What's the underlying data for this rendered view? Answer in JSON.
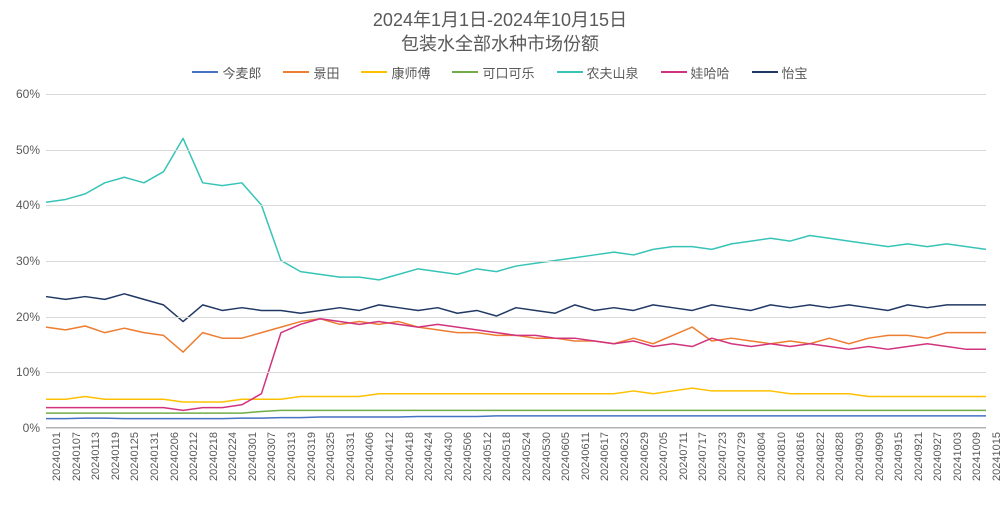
{
  "chart": {
    "type": "line",
    "title_line1": "2024年1月1日-2024年10月15日",
    "title_line2": "包装水全部水种市场份额",
    "title_fontsize": 18,
    "title_color": "#595959",
    "background_color": "#ffffff",
    "grid_color": "#d9d9d9",
    "axis_line_color": "#b3b3b3",
    "axis_label_color": "#595959",
    "axis_label_fontsize": 12,
    "x_label_fontsize": 11,
    "x_label_rotation_deg": -90,
    "line_width": 1.5,
    "y": {
      "min": 0,
      "max": 60,
      "tick_step": 10,
      "format_suffix": "%",
      "ticks": [
        0,
        10,
        20,
        30,
        40,
        50,
        60
      ]
    },
    "x_categories": [
      "20240101",
      "20240107",
      "20240113",
      "20240119",
      "20240125",
      "20240131",
      "20240206",
      "20240212",
      "20240218",
      "20240224",
      "20240301",
      "20240307",
      "20240313",
      "20240319",
      "20240325",
      "20240331",
      "20240406",
      "20240412",
      "20240418",
      "20240424",
      "20240430",
      "20240506",
      "20240512",
      "20240518",
      "20240524",
      "20240530",
      "20240605",
      "20240611",
      "20240617",
      "20240623",
      "20240629",
      "20240705",
      "20240711",
      "20240717",
      "20240723",
      "20240729",
      "20240804",
      "20240810",
      "20240816",
      "20240822",
      "20240828",
      "20240903",
      "20240909",
      "20240915",
      "20240921",
      "20240927",
      "20241003",
      "20241009",
      "20241015"
    ],
    "series": [
      {
        "name": "今麦郎",
        "color": "#4472c4",
        "data": [
          1.5,
          1.5,
          1.6,
          1.6,
          1.5,
          1.5,
          1.5,
          1.5,
          1.5,
          1.5,
          1.6,
          1.6,
          1.7,
          1.7,
          1.8,
          1.8,
          1.8,
          1.8,
          1.8,
          1.9,
          1.9,
          1.9,
          1.9,
          2.0,
          2.0,
          2.0,
          2.0,
          2.0,
          2.0,
          2.0,
          2.0,
          2.0,
          2.0,
          2.0,
          2.0,
          2.0,
          2.0,
          2.0,
          2.0,
          2.0,
          2.0,
          2.0,
          2.0,
          2.0,
          2.0,
          2.0,
          2.0,
          2.0,
          2.0
        ]
      },
      {
        "name": "景田",
        "color": "#ed7d31",
        "data": [
          18.0,
          17.5,
          18.2,
          17.0,
          17.8,
          17.0,
          16.5,
          13.5,
          17.0,
          16.0,
          16.0,
          17.0,
          18.0,
          19.0,
          19.5,
          18.5,
          19.0,
          18.5,
          19.0,
          18.0,
          17.5,
          17.0,
          17.0,
          16.5,
          16.5,
          16.0,
          16.0,
          15.5,
          15.5,
          15.0,
          16.0,
          15.0,
          16.5,
          18.0,
          15.5,
          16.0,
          15.5,
          15.0,
          15.5,
          15.0,
          16.0,
          15.0,
          16.0,
          16.5,
          16.5,
          16.0,
          17.0,
          17.0,
          17.0
        ]
      },
      {
        "name": "康师傅",
        "color": "#ffc000",
        "data": [
          5.0,
          5.0,
          5.5,
          5.0,
          5.0,
          5.0,
          5.0,
          4.5,
          4.5,
          4.5,
          5.0,
          5.0,
          5.0,
          5.5,
          5.5,
          5.5,
          5.5,
          6.0,
          6.0,
          6.0,
          6.0,
          6.0,
          6.0,
          6.0,
          6.0,
          6.0,
          6.0,
          6.0,
          6.0,
          6.0,
          6.5,
          6.0,
          6.5,
          7.0,
          6.5,
          6.5,
          6.5,
          6.5,
          6.0,
          6.0,
          6.0,
          6.0,
          5.5,
          5.5,
          5.5,
          5.5,
          5.5,
          5.5,
          5.5
        ]
      },
      {
        "name": "可口可乐",
        "color": "#70ad47",
        "data": [
          2.5,
          2.5,
          2.5,
          2.5,
          2.5,
          2.5,
          2.5,
          2.5,
          2.5,
          2.5,
          2.5,
          2.8,
          3.0,
          3.0,
          3.0,
          3.0,
          3.0,
          3.0,
          3.0,
          3.0,
          3.0,
          3.0,
          3.0,
          3.0,
          3.0,
          3.0,
          3.0,
          3.0,
          3.0,
          3.0,
          3.0,
          3.0,
          3.0,
          3.0,
          3.0,
          3.0,
          3.0,
          3.0,
          3.0,
          3.0,
          3.0,
          3.0,
          3.0,
          3.0,
          3.0,
          3.0,
          3.0,
          3.0,
          3.0
        ]
      },
      {
        "name": "农夫山泉",
        "color": "#37c4b7",
        "data": [
          40.5,
          41.0,
          42.0,
          44.0,
          45.0,
          44.0,
          46.0,
          52.0,
          44.0,
          43.5,
          44.0,
          40.0,
          30.0,
          28.0,
          27.5,
          27.0,
          27.0,
          26.5,
          27.5,
          28.5,
          28.0,
          27.5,
          28.5,
          28.0,
          29.0,
          29.5,
          30.0,
          30.5,
          31.0,
          31.5,
          31.0,
          32.0,
          32.5,
          32.5,
          32.0,
          33.0,
          33.5,
          34.0,
          33.5,
          34.5,
          34.0,
          33.5,
          33.0,
          32.5,
          33.0,
          32.5,
          33.0,
          32.5,
          32.0
        ]
      },
      {
        "name": "娃哈哈",
        "color": "#d1337f",
        "data": [
          3.5,
          3.5,
          3.5,
          3.5,
          3.5,
          3.5,
          3.5,
          3.0,
          3.5,
          3.5,
          4.0,
          6.0,
          17.0,
          18.5,
          19.5,
          19.0,
          18.5,
          19.0,
          18.5,
          18.0,
          18.5,
          18.0,
          17.5,
          17.0,
          16.5,
          16.5,
          16.0,
          16.0,
          15.5,
          15.0,
          15.5,
          14.5,
          15.0,
          14.5,
          16.0,
          15.0,
          14.5,
          15.0,
          14.5,
          15.0,
          14.5,
          14.0,
          14.5,
          14.0,
          14.5,
          15.0,
          14.5,
          14.0,
          14.0
        ]
      },
      {
        "name": "怡宝",
        "color": "#203864",
        "data": [
          23.5,
          23.0,
          23.5,
          23.0,
          24.0,
          23.0,
          22.0,
          19.0,
          22.0,
          21.0,
          21.5,
          21.0,
          21.0,
          20.5,
          21.0,
          21.5,
          21.0,
          22.0,
          21.5,
          21.0,
          21.5,
          20.5,
          21.0,
          20.0,
          21.5,
          21.0,
          20.5,
          22.0,
          21.0,
          21.5,
          21.0,
          22.0,
          21.5,
          21.0,
          22.0,
          21.5,
          21.0,
          22.0,
          21.5,
          22.0,
          21.5,
          22.0,
          21.5,
          21.0,
          22.0,
          21.5,
          22.0,
          22.0,
          22.0
        ]
      }
    ],
    "legend": {
      "position": "top",
      "fontsize": 13,
      "swatch_width": 26
    }
  }
}
